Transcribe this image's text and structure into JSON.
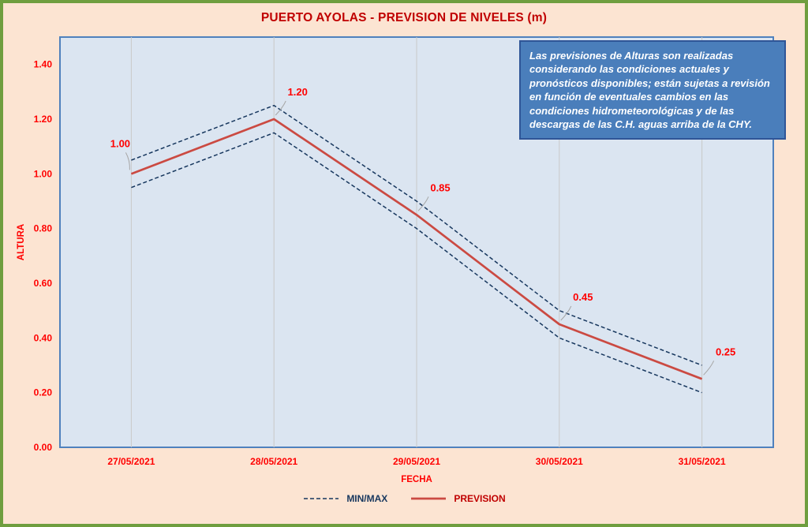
{
  "title": "PUERTO AYOLAS - PREVISION DE NIVELES (m)",
  "note": "Las previsiones de Alturas son realizadas considerando las condiciones actuales y pronósticos disponibles;  están sujetas a revisión en función de eventuales cambios en las condiciones hidrometeorológicas y de las descargas de las C.H. aguas arriba de la CHY.",
  "chart_data": {
    "type": "line",
    "x": [
      "27/05/2021",
      "28/05/2021",
      "29/05/2021",
      "30/05/2021",
      "31/05/2021"
    ],
    "series": [
      {
        "name": "PREVISION",
        "style": "solid",
        "color": "#cb4a42",
        "values": [
          1.0,
          1.2,
          0.85,
          0.45,
          0.25
        ]
      },
      {
        "name": "MAX",
        "style": "dashed",
        "color": "#17375e",
        "values": [
          1.05,
          1.25,
          0.9,
          0.5,
          0.3
        ]
      },
      {
        "name": "MIN",
        "style": "dashed",
        "color": "#17375e",
        "values": [
          0.95,
          1.15,
          0.8,
          0.4,
          0.2
        ]
      }
    ],
    "labels": [
      "1.00",
      "1.20",
      "0.85",
      "0.45",
      "0.25"
    ],
    "xlabel": "FECHA",
    "ylabel": "ALTURA",
    "ylim": [
      0,
      1.5
    ],
    "yticks": [
      0,
      0.2,
      0.4,
      0.6,
      0.8,
      1.0,
      1.2,
      1.4
    ],
    "grid": "vertical-category-lines",
    "legend": [
      {
        "label": "MIN/MAX",
        "style": "dashed",
        "color": "#17375e"
      },
      {
        "label": "PREVISION",
        "style": "solid",
        "color": "#c00000"
      }
    ],
    "colors": {
      "frame_border": "#6f9e3f",
      "page_background": "#fce4d2",
      "plot_background": "#dbe5f1",
      "plot_border": "#4f81bd",
      "title_text": "#c00000",
      "axis_text": "#ff0000",
      "gridline": "#c9c9c9",
      "leader_line": "#a6a6a6",
      "note_background": "#4a7ebb",
      "note_border": "#2f5597",
      "note_text": "#ffffff"
    }
  }
}
